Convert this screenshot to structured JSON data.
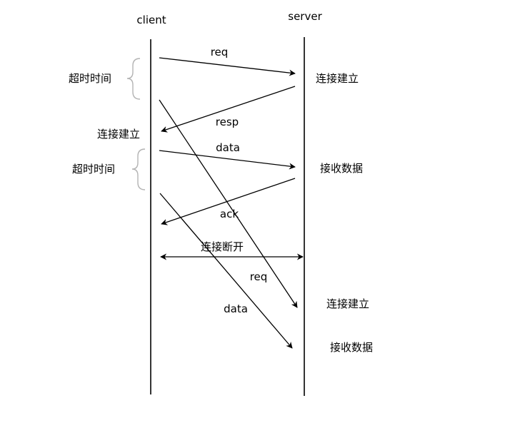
{
  "participants": {
    "client": "client",
    "server": "server"
  },
  "messages": {
    "req1": "req",
    "resp": "resp",
    "data1": "data",
    "ack": "ack",
    "disconnect": "连接断开",
    "req2": "req",
    "data2": "data"
  },
  "annotations": {
    "timeout1": "超时时间",
    "timeout2": "超时时间",
    "client_connected": "连接建立",
    "server_connected1": "连接建立",
    "server_received1": "接收数据",
    "server_connected2": "连接建立",
    "server_received2": "接收数据"
  },
  "colors": {
    "line": "#000000",
    "brace": "#b3b3b3"
  }
}
